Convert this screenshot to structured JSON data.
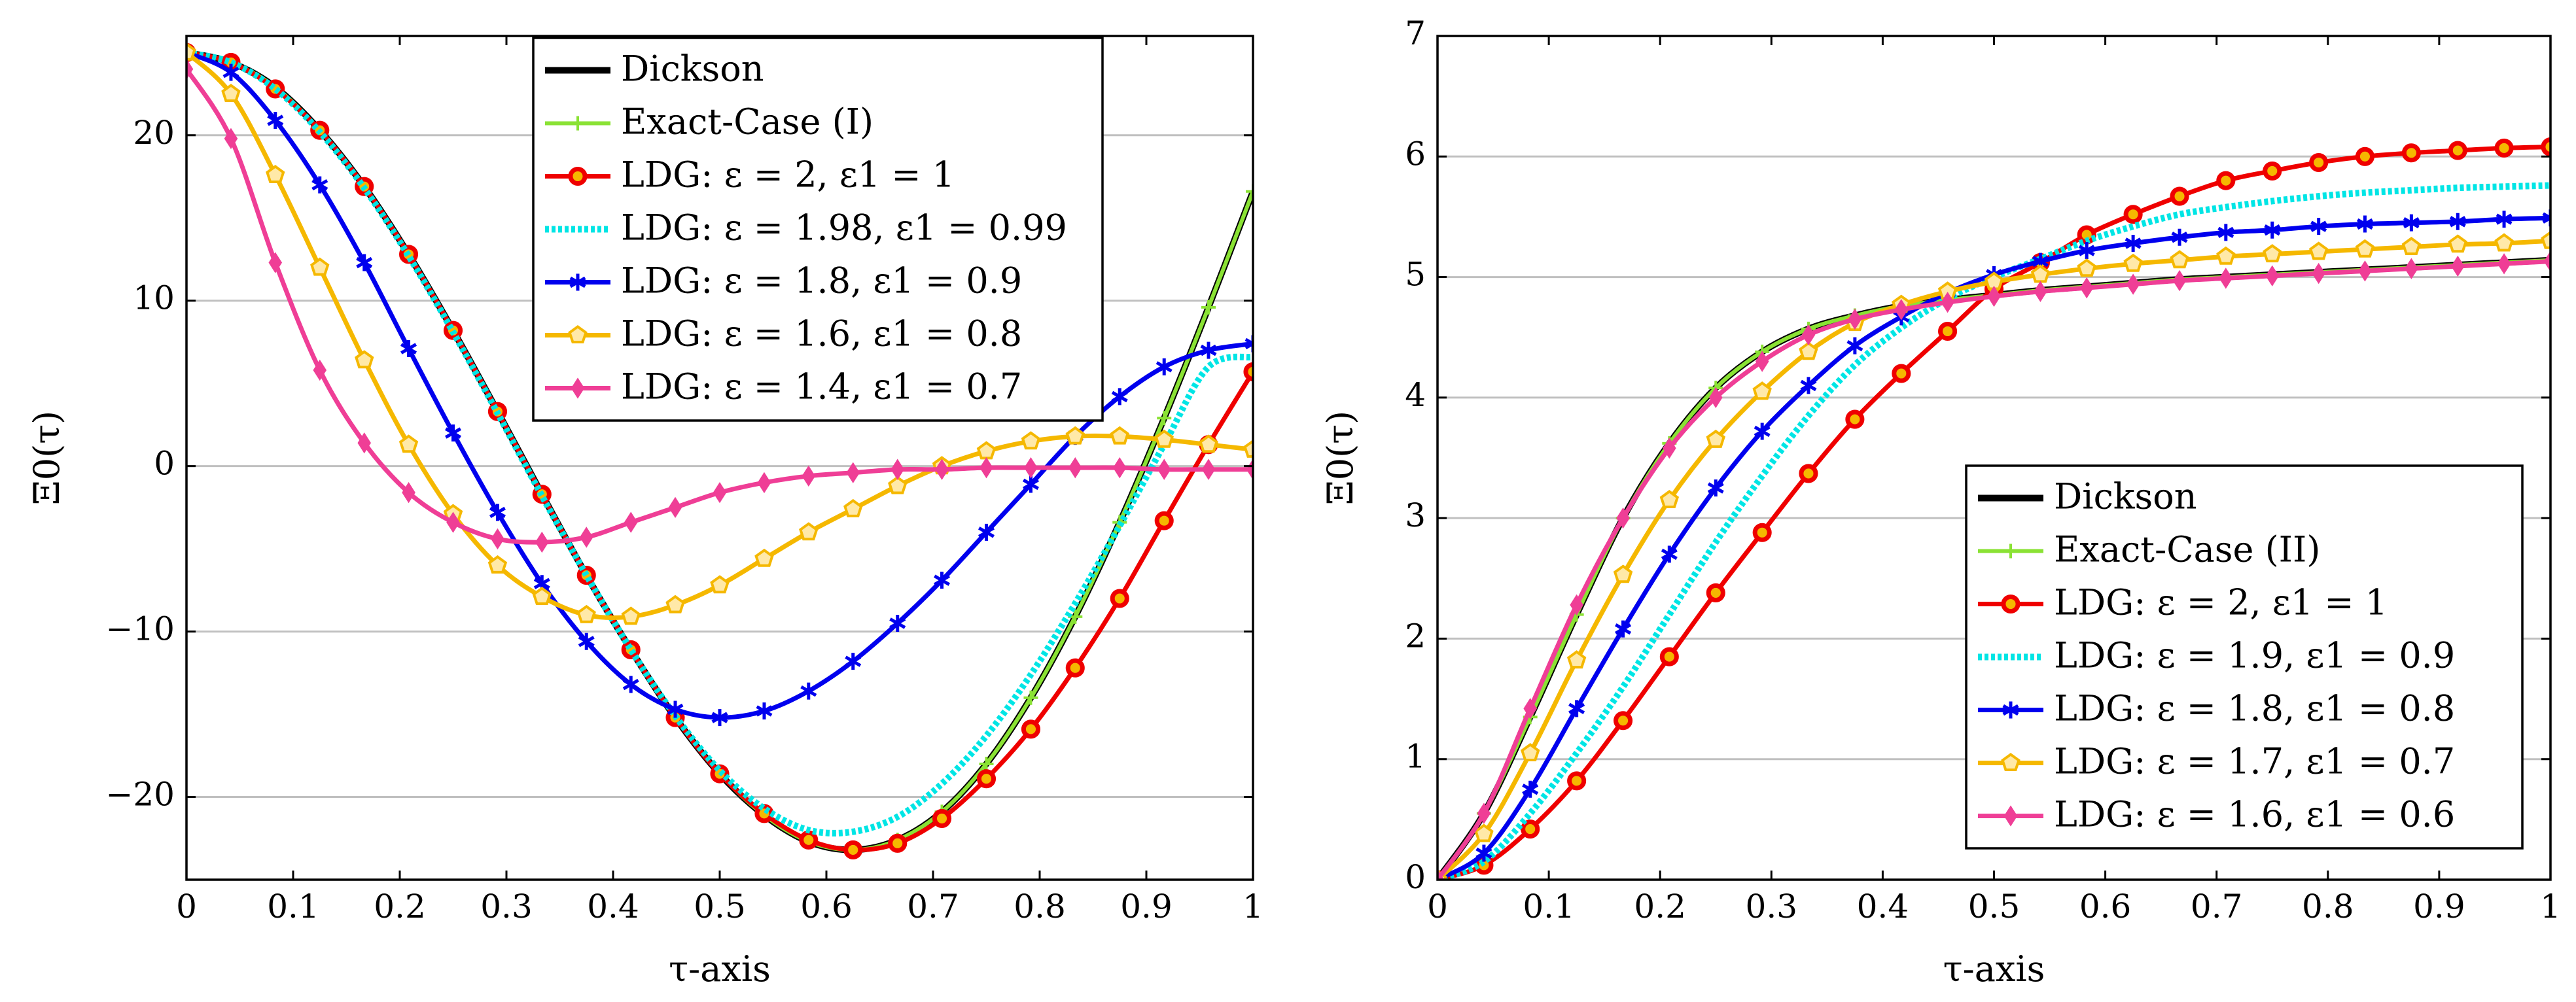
{
  "chart_data": [
    {
      "type": "line",
      "xlabel": "τ-axis",
      "ylabel": "Ξ0(τ)",
      "xlim": [
        0,
        1
      ],
      "ylim": [
        -25,
        26
      ],
      "xticks": [
        0,
        0.1,
        0.2,
        0.3,
        0.4,
        0.5,
        0.6,
        0.7,
        0.8,
        0.9,
        1
      ],
      "xtick_labels": [
        "0",
        "0.1",
        "0.2",
        "0.3",
        "0.4",
        "0.5",
        "0.6",
        "0.7",
        "0.8",
        "0.9",
        "1"
      ],
      "yticks": [
        -20,
        -10,
        0,
        10,
        20
      ],
      "ytick_labels": [
        "−20",
        "−10",
        "0",
        "10",
        "20"
      ],
      "grid": "horizontal",
      "legend_position": "top-center",
      "x": [
        0,
        0.0417,
        0.0833,
        0.125,
        0.1667,
        0.2083,
        0.25,
        0.2917,
        0.3333,
        0.375,
        0.4167,
        0.4583,
        0.5,
        0.5417,
        0.5833,
        0.625,
        0.6667,
        0.7083,
        0.75,
        0.7917,
        0.8333,
        0.875,
        0.9167,
        0.9583,
        1
      ],
      "series": [
        {
          "name": "Dickson",
          "color": "#000000",
          "marker": "none",
          "width": 10,
          "values": [
            25,
            24.4,
            22.9,
            20.3,
            16.9,
            12.8,
            8.2,
            3.3,
            -1.7,
            -6.6,
            -11.1,
            -15.2,
            -18.6,
            -21.1,
            -22.7,
            -23.2,
            -22.6,
            -20.9,
            -18.0,
            -14.0,
            -9.1,
            -3.4,
            2.9,
            9.6,
            16.6
          ]
        },
        {
          "name": "Exact-Case (I)",
          "color": "#8ae234",
          "marker": "plus",
          "width": 6,
          "values": [
            25,
            24.4,
            22.9,
            20.3,
            16.9,
            12.8,
            8.2,
            3.3,
            -1.7,
            -6.6,
            -11.1,
            -15.2,
            -18.6,
            -21.1,
            -22.7,
            -23.2,
            -22.6,
            -20.9,
            -18.0,
            -14.0,
            -9.1,
            -3.4,
            2.9,
            9.6,
            16.6
          ]
        },
        {
          "name": "LDG: ε = 2, ε1 = 1",
          "color": "#ef0000",
          "marker": "circle",
          "width": 7,
          "values": [
            25,
            24.4,
            22.8,
            20.3,
            16.9,
            12.8,
            8.2,
            3.3,
            -1.7,
            -6.6,
            -11.1,
            -15.2,
            -18.6,
            -21.0,
            -22.6,
            -23.2,
            -22.8,
            -21.3,
            -18.9,
            -15.9,
            -12.2,
            -8.0,
            -3.3,
            1.3,
            5.7
          ]
        },
        {
          "name": "LDG: ε = 1.98, ε1 = 0.99",
          "color": "#00e5e5",
          "marker": "none",
          "width": 10,
          "dash": "dotted",
          "values": [
            25,
            24.4,
            22.8,
            20.2,
            16.8,
            12.7,
            8.1,
            3.2,
            -1.8,
            -6.6,
            -11.1,
            -15.1,
            -18.4,
            -20.7,
            -22.0,
            -22.1,
            -21.2,
            -19.2,
            -16.3,
            -12.6,
            -8.3,
            -3.6,
            1.3,
            6.0,
            6.6
          ]
        },
        {
          "name": "LDG: ε = 1.8, ε1 = 0.9",
          "color": "#0000ee",
          "marker": "star",
          "width": 7,
          "values": [
            25,
            23.8,
            20.9,
            17.0,
            12.3,
            7.1,
            2.0,
            -2.8,
            -7.1,
            -10.6,
            -13.2,
            -14.7,
            -15.2,
            -14.8,
            -13.6,
            -11.8,
            -9.5,
            -6.9,
            -4.0,
            -1.1,
            1.8,
            4.2,
            6.0,
            7.0,
            7.4
          ]
        },
        {
          "name": "LDG: ε = 1.6, ε1 = 0.8",
          "color": "#f5b800",
          "marker": "pentagon",
          "width": 7,
          "values": [
            25,
            22.5,
            17.6,
            12.0,
            6.4,
            1.3,
            -2.9,
            -6.0,
            -7.9,
            -9.0,
            -9.1,
            -8.4,
            -7.2,
            -5.6,
            -4.0,
            -2.6,
            -1.2,
            0.0,
            0.9,
            1.5,
            1.8,
            1.8,
            1.6,
            1.3,
            1.0
          ]
        },
        {
          "name": "LDG: ε = 1.4, ε1 = 0.7",
          "color": "#ef3e96",
          "marker": "diamond",
          "width": 7,
          "values": [
            24,
            19.8,
            12.3,
            5.8,
            1.4,
            -1.6,
            -3.4,
            -4.4,
            -4.6,
            -4.3,
            -3.4,
            -2.5,
            -1.6,
            -1.0,
            -0.6,
            -0.4,
            -0.2,
            -0.2,
            -0.1,
            -0.1,
            -0.1,
            -0.1,
            -0.2,
            -0.2,
            -0.2
          ]
        }
      ]
    },
    {
      "type": "line",
      "xlabel": "τ-axis",
      "ylabel": "Ξ0(τ)",
      "xlim": [
        0,
        1
      ],
      "ylim": [
        0,
        7
      ],
      "xticks": [
        0,
        0.1,
        0.2,
        0.3,
        0.4,
        0.5,
        0.6,
        0.7,
        0.8,
        0.9,
        1
      ],
      "xtick_labels": [
        "0",
        "0.1",
        "0.2",
        "0.3",
        "0.4",
        "0.5",
        "0.6",
        "0.7",
        "0.8",
        "0.9",
        "1"
      ],
      "yticks": [
        0,
        1,
        2,
        3,
        4,
        5,
        6,
        7
      ],
      "ytick_labels": [
        "0",
        "1",
        "2",
        "3",
        "4",
        "5",
        "6",
        "7"
      ],
      "grid": "horizontal",
      "legend_position": "bottom-right",
      "x": [
        0,
        0.0417,
        0.0833,
        0.125,
        0.1667,
        0.2083,
        0.25,
        0.2917,
        0.3333,
        0.375,
        0.4167,
        0.4583,
        0.5,
        0.5417,
        0.5833,
        0.625,
        0.6667,
        0.7083,
        0.75,
        0.7917,
        0.8333,
        0.875,
        0.9167,
        0.9583,
        1
      ],
      "series": [
        {
          "name": "Dickson",
          "color": "#000000",
          "marker": "none",
          "width": 10,
          "values": [
            0,
            0.55,
            1.35,
            2.2,
            3.0,
            3.62,
            4.08,
            4.38,
            4.57,
            4.68,
            4.76,
            4.81,
            4.85,
            4.89,
            4.92,
            4.95,
            4.98,
            5.0,
            5.02,
            5.04,
            5.06,
            5.08,
            5.1,
            5.12,
            5.14
          ]
        },
        {
          "name": "Exact-Case (II)",
          "color": "#8ae234",
          "marker": "plus",
          "width": 6,
          "values": [
            0,
            0.55,
            1.35,
            2.2,
            3.0,
            3.62,
            4.08,
            4.38,
            4.57,
            4.68,
            4.76,
            4.81,
            4.85,
            4.89,
            4.92,
            4.95,
            4.98,
            5.0,
            5.02,
            5.04,
            5.06,
            5.08,
            5.1,
            5.12,
            5.14
          ]
        },
        {
          "name": "LDG: ε = 2, ε1 = 1",
          "color": "#ef0000",
          "marker": "circle",
          "width": 7,
          "values": [
            0,
            0.12,
            0.42,
            0.82,
            1.32,
            1.85,
            2.38,
            2.88,
            3.37,
            3.82,
            4.2,
            4.55,
            4.9,
            5.12,
            5.35,
            5.52,
            5.67,
            5.8,
            5.88,
            5.95,
            6.0,
            6.03,
            6.05,
            6.07,
            6.08
          ]
        },
        {
          "name": "LDG: ε = 1.9, ε1 = 0.9",
          "color": "#00e5e5",
          "marker": "none",
          "width": 10,
          "dash": "dotted",
          "values": [
            0,
            0.15,
            0.55,
            1.05,
            1.6,
            2.2,
            2.8,
            3.35,
            3.85,
            4.27,
            4.58,
            4.82,
            5.0,
            5.15,
            5.3,
            5.42,
            5.52,
            5.58,
            5.63,
            5.67,
            5.7,
            5.72,
            5.74,
            5.75,
            5.76
          ]
        },
        {
          "name": "LDG: ε = 1.8, ε1 = 0.8",
          "color": "#0000ee",
          "marker": "star",
          "width": 7,
          "values": [
            0,
            0.22,
            0.75,
            1.42,
            2.08,
            2.7,
            3.25,
            3.72,
            4.1,
            4.43,
            4.67,
            4.87,
            5.02,
            5.13,
            5.22,
            5.28,
            5.33,
            5.37,
            5.39,
            5.42,
            5.44,
            5.45,
            5.46,
            5.48,
            5.49
          ]
        },
        {
          "name": "LDG: ε = 1.7, ε1 = 0.7",
          "color": "#f5b800",
          "marker": "pentagon",
          "width": 7,
          "values": [
            0,
            0.38,
            1.05,
            1.82,
            2.53,
            3.15,
            3.65,
            4.05,
            4.38,
            4.62,
            4.77,
            4.88,
            4.96,
            5.02,
            5.07,
            5.11,
            5.14,
            5.17,
            5.19,
            5.21,
            5.23,
            5.25,
            5.27,
            5.28,
            5.3
          ]
        },
        {
          "name": "LDG: ε = 1.6, ε1 = 0.6",
          "color": "#ef3e96",
          "marker": "diamond",
          "width": 7,
          "values": [
            0,
            0.55,
            1.42,
            2.28,
            3.0,
            3.58,
            4.0,
            4.3,
            4.52,
            4.65,
            4.73,
            4.79,
            4.84,
            4.88,
            4.91,
            4.94,
            4.97,
            4.99,
            5.01,
            5.03,
            5.05,
            5.07,
            5.09,
            5.11,
            5.13
          ]
        }
      ]
    }
  ]
}
